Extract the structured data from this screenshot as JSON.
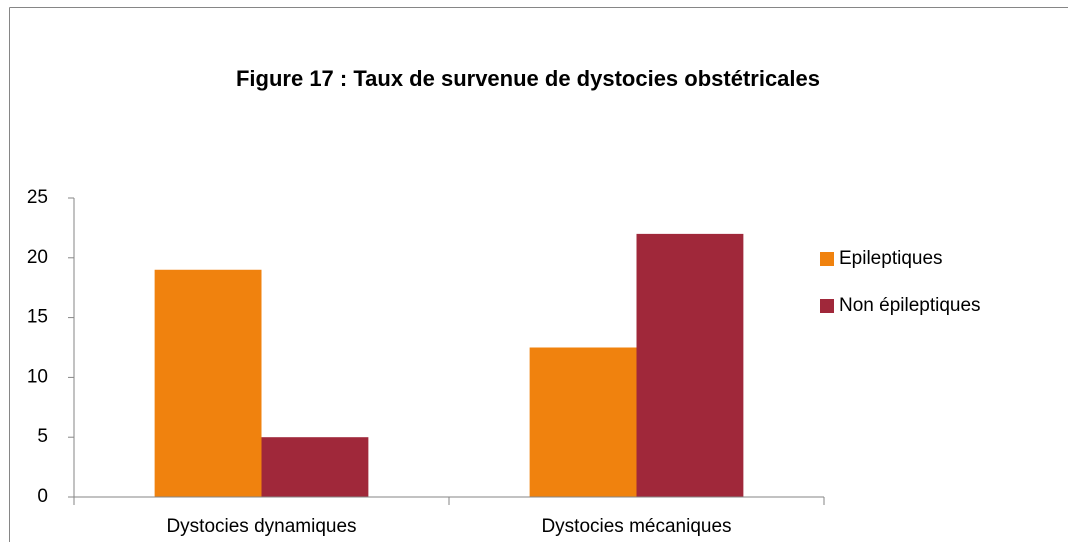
{
  "chart_data": {
    "type": "bar",
    "title": "Figure 17 : Taux de survenue de dystocies obstétricales",
    "categories": [
      "Dystocies dynamiques",
      "Dystocies mécaniques"
    ],
    "series": [
      {
        "name": "Epileptiques",
        "color": "#f0820e",
        "values": [
          19,
          12.5
        ]
      },
      {
        "name": "Non épileptiques",
        "color": "#a0283a",
        "values": [
          5,
          22
        ]
      }
    ],
    "ylim": [
      0,
      25
    ],
    "yticks": [
      0,
      5,
      10,
      15,
      20,
      25
    ],
    "grid": false,
    "legend": "right"
  }
}
